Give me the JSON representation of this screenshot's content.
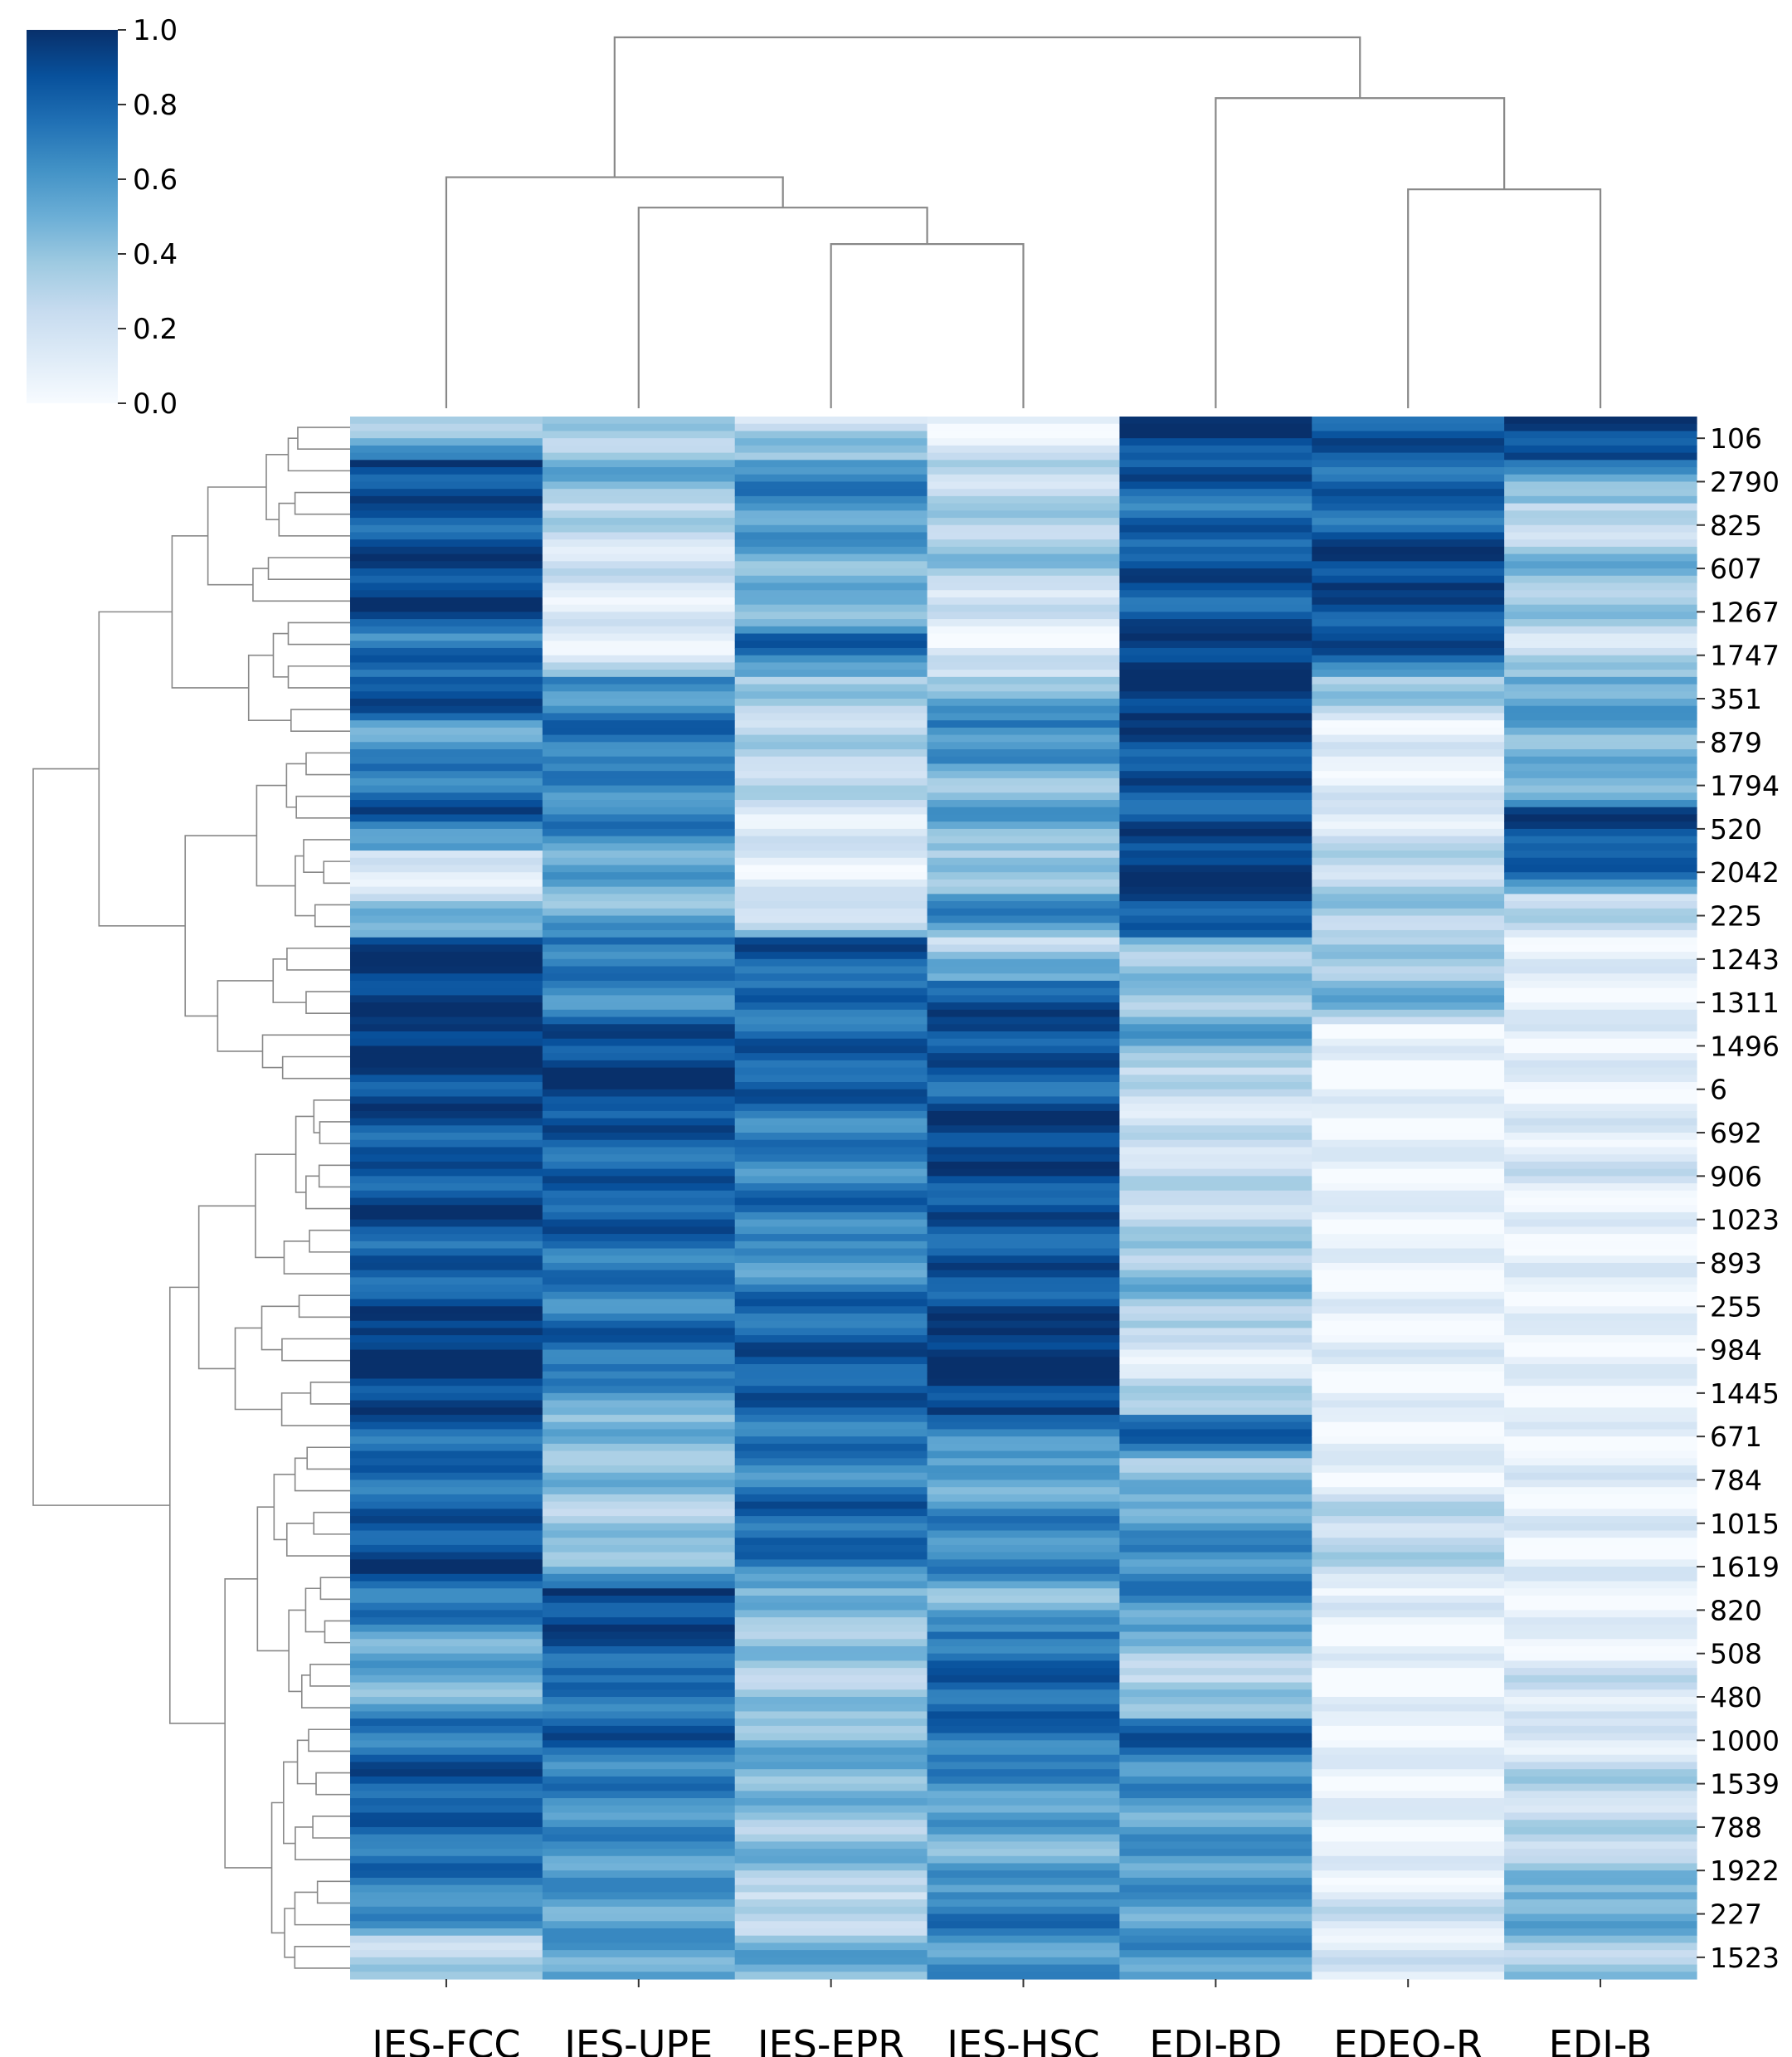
{
  "chart_data": {
    "type": "heatmap",
    "title": "",
    "columns": [
      "IES-FCC",
      "IES-UPE",
      "IES-EPR",
      "IES-HSC",
      "EDI-BD",
      "EDEQ-R",
      "EDI-B"
    ],
    "row_labels": [
      "106",
      "2790",
      "825",
      "607",
      "1267",
      "1747",
      "351",
      "879",
      "1794",
      "520",
      "2042",
      "225",
      "1243",
      "1311",
      "1496",
      "6",
      "692",
      "906",
      "1023",
      "893",
      "255",
      "984",
      "1445",
      "671",
      "784",
      "1015",
      "1619",
      "820",
      "508",
      "480",
      "1000",
      "1539",
      "788",
      "1922",
      "227",
      "1523"
    ],
    "values": [
      [
        0.35,
        0.3,
        0.25,
        0.05,
        0.95,
        0.85,
        1.0
      ],
      [
        0.9,
        0.5,
        0.7,
        0.25,
        0.85,
        0.8,
        0.6
      ],
      [
        0.8,
        0.3,
        0.6,
        0.3,
        0.75,
        0.75,
        0.2
      ],
      [
        0.9,
        0.2,
        0.5,
        0.4,
        0.9,
        0.95,
        0.45
      ],
      [
        0.95,
        0.15,
        0.4,
        0.2,
        0.8,
        0.85,
        0.4
      ],
      [
        0.7,
        0.05,
        0.8,
        0.05,
        0.95,
        0.9,
        0.2
      ],
      [
        0.95,
        0.6,
        0.35,
        0.45,
        1.0,
        0.4,
        0.55
      ],
      [
        0.55,
        0.75,
        0.3,
        0.7,
        0.9,
        0.1,
        0.5
      ],
      [
        0.7,
        0.65,
        0.3,
        0.4,
        0.85,
        0.1,
        0.4
      ],
      [
        0.85,
        0.7,
        0.15,
        0.55,
        0.85,
        0.15,
        0.9
      ],
      [
        0.1,
        0.55,
        0.1,
        0.3,
        1.0,
        0.25,
        0.85
      ],
      [
        0.3,
        0.45,
        0.1,
        0.7,
        0.95,
        0.35,
        0.3
      ],
      [
        1.0,
        0.75,
        0.85,
        0.3,
        0.4,
        0.3,
        0.1
      ],
      [
        0.95,
        0.6,
        0.75,
        0.85,
        0.35,
        0.55,
        0.05
      ],
      [
        1.0,
        0.85,
        0.8,
        0.9,
        0.55,
        0.05,
        0.1
      ],
      [
        0.9,
        1.0,
        0.85,
        0.75,
        0.25,
        0.05,
        0.05
      ],
      [
        0.85,
        0.85,
        0.7,
        0.95,
        0.2,
        0.05,
        0.1
      ],
      [
        0.8,
        0.8,
        0.65,
        0.9,
        0.25,
        0.05,
        0.2
      ],
      [
        0.95,
        0.85,
        0.75,
        0.85,
        0.25,
        0.05,
        0.05
      ],
      [
        0.8,
        0.75,
        0.55,
        0.85,
        0.35,
        0.05,
        0.1
      ],
      [
        0.85,
        0.65,
        0.75,
        0.85,
        0.45,
        0.05,
        0.05
      ],
      [
        1.0,
        0.8,
        0.85,
        1.0,
        0.15,
        0.1,
        0.05
      ],
      [
        0.95,
        0.65,
        0.85,
        1.0,
        0.15,
        0.05,
        0.05
      ],
      [
        0.8,
        0.45,
        0.75,
        0.7,
        0.85,
        0.05,
        0.05
      ],
      [
        0.75,
        0.45,
        0.65,
        0.5,
        0.4,
        0.05,
        0.1
      ],
      [
        0.8,
        0.35,
        0.8,
        0.65,
        0.55,
        0.25,
        0.1
      ],
      [
        0.95,
        0.4,
        0.75,
        0.7,
        0.65,
        0.3,
        0.1
      ],
      [
        0.75,
        0.9,
        0.45,
        0.45,
        0.65,
        0.1,
        0.05
      ],
      [
        0.55,
        0.85,
        0.4,
        0.75,
        0.4,
        0.05,
        0.05
      ],
      [
        0.45,
        0.7,
        0.35,
        0.8,
        0.25,
        0.05,
        0.2
      ],
      [
        0.7,
        0.85,
        0.45,
        0.75,
        0.85,
        0.05,
        0.1
      ],
      [
        0.85,
        0.7,
        0.5,
        0.65,
        0.65,
        0.05,
        0.3
      ],
      [
        0.8,
        0.65,
        0.35,
        0.55,
        0.55,
        0.05,
        0.25
      ],
      [
        0.75,
        0.6,
        0.45,
        0.5,
        0.6,
        0.05,
        0.35
      ],
      [
        0.7,
        0.55,
        0.2,
        0.75,
        0.55,
        0.2,
        0.55
      ],
      [
        0.3,
        0.55,
        0.5,
        0.6,
        0.6,
        0.15,
        0.35
      ]
    ],
    "column_dendrogram": [
      {
        "pair": [
          "IES-EPR",
          "IES-HSC"
        ],
        "height": 0.27
      },
      {
        "pair": [
          "IES-UPE",
          "IES-EPR+IES-HSC"
        ],
        "height": 0.33
      },
      {
        "pair": [
          "IES-FCC",
          "IES-UPE+IES-EPR+IES-HSC"
        ],
        "height": 0.38
      },
      {
        "pair": [
          "EDEQ-R",
          "EDI-B"
        ],
        "height": 0.36
      },
      {
        "pair": [
          "EDI-BD",
          "EDEQ-R+EDI-B"
        ],
        "height": 0.51
      },
      {
        "pair": [
          "IES",
          "EDI"
        ],
        "height": 0.61
      }
    ],
    "colorbar": {
      "colormap": "Blues",
      "range": [
        0.0,
        1.0
      ],
      "ticks": [
        "1.0",
        "0.8",
        "0.6",
        "0.4",
        "0.2",
        "0.0"
      ],
      "position": "top-left"
    },
    "row_dendrogram": "left",
    "col_dendrogram": "top"
  }
}
